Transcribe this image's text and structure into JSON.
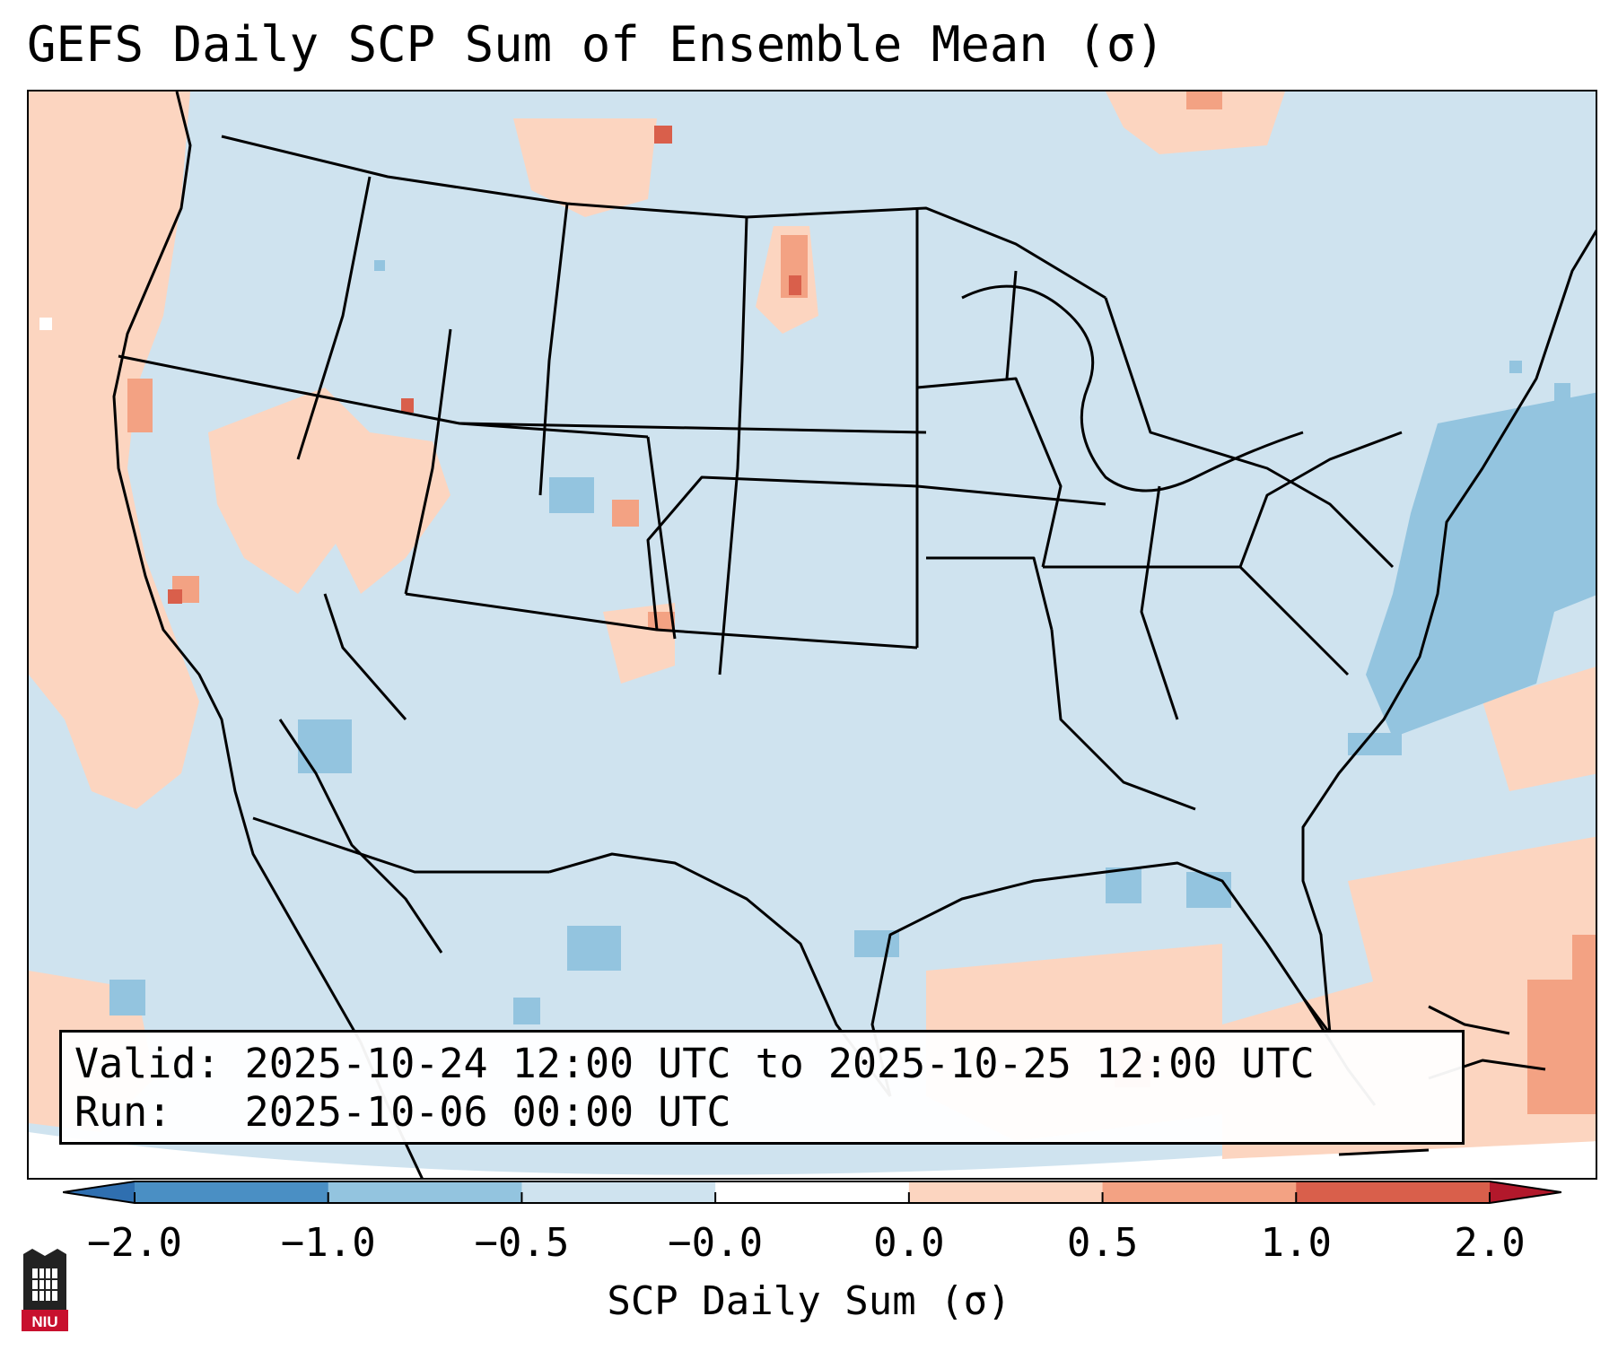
{
  "title": "GEFS Daily SCP Sum of Ensemble Mean (σ)",
  "info": {
    "valid_line": "Valid: 2025-10-24 12:00 UTC to 2025-10-25 12:00 UTC",
    "run_line": "Run:   2025-10-06 00:00 UTC"
  },
  "colorbar": {
    "label": "SCP Daily Sum (σ)",
    "ticks": [
      "−2.0",
      "−1.0",
      "−0.5",
      "−0.0",
      "0.0",
      "0.5",
      "1.0",
      "2.0"
    ],
    "bin_colors": [
      "#4a8fc4",
      "#93c4df",
      "#cfe3ef",
      "#ffffff",
      "#fcd5c0",
      "#f3a283",
      "#d95f4b"
    ],
    "under_color": "#2f6fb0",
    "over_color": "#b2182b"
  },
  "colors": {
    "background": "#cfe3ef",
    "positive_light": "#fcd5c0",
    "positive_mid": "#f3a283",
    "positive_strong": "#d95f4b",
    "negative_light": "#93c4df"
  },
  "logo": {
    "text": "NIU",
    "color": "#c8102e"
  }
}
